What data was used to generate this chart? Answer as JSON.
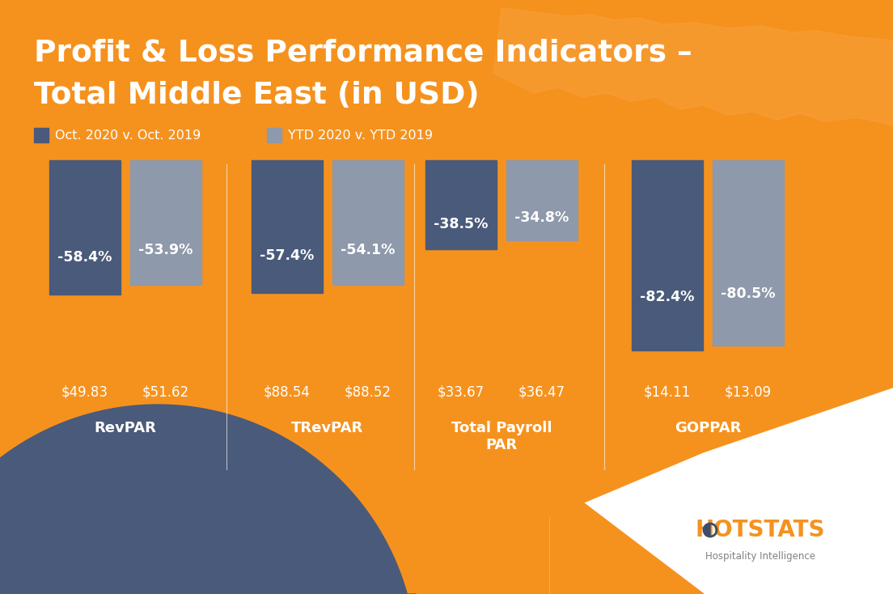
{
  "title_line1": "Profit & Loss Performance Indicators –",
  "title_line2": "Total Middle East (in USD)",
  "bg_color": "#F5921E",
  "bar_dark": "#4A5A7A",
  "bar_light": "#8E99AB",
  "legend_dark": "Oct. 2020 v. Oct. 2019",
  "legend_light": "YTD 2020 v. YTD 2019",
  "categories": [
    "RevPAR",
    "TRevPAR",
    "Total Payroll\nPAR",
    "GOPPAR"
  ],
  "oct_pct": [
    58.4,
    57.4,
    38.5,
    82.4
  ],
  "ytd_pct": [
    53.9,
    54.1,
    34.8,
    80.5
  ],
  "oct_labels": [
    "-58.4%",
    "-57.4%",
    "-38.5%",
    "-82.4%"
  ],
  "ytd_labels": [
    "-53.9%",
    "-54.1%",
    "-34.8%",
    "-80.5%"
  ],
  "oct_amounts": [
    "$49.83",
    "$88.54",
    "$33.67",
    "$14.11"
  ],
  "ytd_amounts": [
    "$51.62",
    "$88.52",
    "$36.47",
    "$13.09"
  ],
  "white": "#FFFFFF",
  "hotstats_orange": "#F5921E",
  "hotstats_dark": "#3D4E6B",
  "gray_text": "#808080",
  "map_color": "#F8A84A"
}
